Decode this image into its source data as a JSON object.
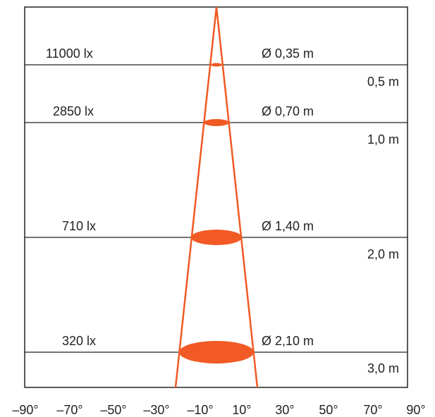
{
  "colors": {
    "beam": "#F15A24",
    "frame": "#222222",
    "background": "#FFFFFF"
  },
  "rows": [
    {
      "lux": "11000 lx",
      "diameter": "Ø 0,35 m",
      "distance": "0,5 m"
    },
    {
      "lux": "2850 lx",
      "diameter": "Ø 0,70 m",
      "distance": "1,0 m"
    },
    {
      "lux": "710 lx",
      "diameter": "Ø 1,40 m",
      "distance": "2,0 m"
    },
    {
      "lux": "320 lx",
      "diameter": "Ø 2,10 m",
      "distance": "3,0 m"
    }
  ],
  "angle_axis": [
    "–90°",
    "–70°",
    "–50°",
    "–30°",
    "–10°",
    "10°",
    "30°",
    "50°",
    "70°",
    "90°"
  ]
}
